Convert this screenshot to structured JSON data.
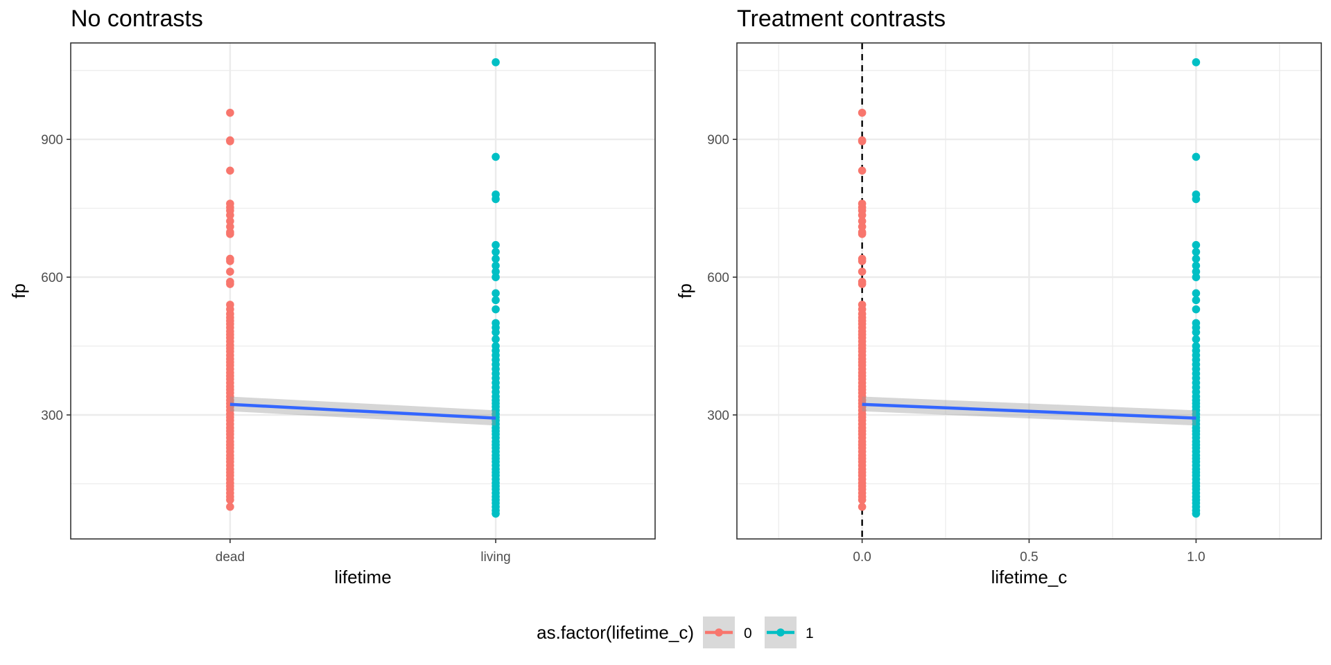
{
  "chart_data": [
    {
      "type": "scatter",
      "title": "No contrasts",
      "xlabel": "lifetime",
      "ylabel": "fp",
      "x_type": "categorical",
      "categories": [
        "dead",
        "living"
      ],
      "ylim": [
        30,
        1110
      ],
      "y_ticks": [
        300,
        600,
        900
      ],
      "grid": true,
      "series": [
        {
          "name": "0",
          "x": "dead",
          "color": "#F8766D",
          "values": [
            958,
            898,
            896,
            832,
            760,
            752,
            745,
            735,
            722,
            710,
            698,
            694,
            640,
            635,
            612,
            590,
            585,
            540,
            530,
            520,
            512,
            505,
            498,
            490,
            482,
            475,
            468,
            460,
            452,
            445,
            438,
            430,
            422,
            415,
            408,
            400,
            392,
            385,
            378,
            370,
            362,
            355,
            348,
            340,
            332,
            325,
            318,
            310,
            302,
            295,
            288,
            280,
            272,
            265,
            258,
            250,
            242,
            235,
            228,
            220,
            212,
            205,
            198,
            190,
            182,
            175,
            168,
            160,
            152,
            145,
            138,
            130,
            122,
            115,
            100
          ]
        },
        {
          "name": "1",
          "x": "living",
          "color": "#00BFC4",
          "values": [
            1068,
            862,
            780,
            770,
            670,
            655,
            640,
            625,
            612,
            600,
            565,
            550,
            530,
            500,
            490,
            480,
            465,
            450,
            440,
            430,
            420,
            410,
            400,
            390,
            380,
            370,
            360,
            350,
            340,
            332,
            325,
            318,
            310,
            302,
            295,
            288,
            280,
            272,
            265,
            258,
            250,
            242,
            235,
            228,
            220,
            212,
            205,
            198,
            190,
            182,
            175,
            168,
            160,
            152,
            145,
            138,
            130,
            122,
            115,
            108,
            100,
            92,
            85
          ]
        }
      ],
      "fit": {
        "color": "#3366FF",
        "x": [
          "dead",
          "living"
        ],
        "y": [
          323,
          293
        ],
        "ci_lower": [
          308,
          277
        ],
        "ci_upper": [
          340,
          310
        ],
        "ci_color": "#999999"
      }
    },
    {
      "type": "scatter",
      "title": "Treatment contrasts",
      "xlabel": "lifetime_c",
      "ylabel": "fp",
      "x_type": "numeric",
      "xlim": [
        -0.375,
        1.375
      ],
      "x_ticks": [
        0.0,
        0.5,
        1.0
      ],
      "x_tick_labels": [
        "0.0",
        "0.5",
        "1.0"
      ],
      "ylim": [
        30,
        1110
      ],
      "y_ticks": [
        300,
        600,
        900
      ],
      "grid": true,
      "vline": {
        "x": 0,
        "style": "dashed",
        "color": "#000000"
      },
      "series": [
        {
          "name": "0",
          "x": 0,
          "color": "#F8766D",
          "values": [
            958,
            898,
            896,
            832,
            760,
            752,
            745,
            735,
            722,
            710,
            698,
            694,
            640,
            635,
            612,
            590,
            585,
            540,
            530,
            520,
            512,
            505,
            498,
            490,
            482,
            475,
            468,
            460,
            452,
            445,
            438,
            430,
            422,
            415,
            408,
            400,
            392,
            385,
            378,
            370,
            362,
            355,
            348,
            340,
            332,
            325,
            318,
            310,
            302,
            295,
            288,
            280,
            272,
            265,
            258,
            250,
            242,
            235,
            228,
            220,
            212,
            205,
            198,
            190,
            182,
            175,
            168,
            160,
            152,
            145,
            138,
            130,
            122,
            115,
            100
          ]
        },
        {
          "name": "1",
          "x": 1,
          "color": "#00BFC4",
          "values": [
            1068,
            862,
            780,
            770,
            670,
            655,
            640,
            625,
            612,
            600,
            565,
            550,
            530,
            500,
            490,
            480,
            465,
            450,
            440,
            430,
            420,
            410,
            400,
            390,
            380,
            370,
            360,
            350,
            340,
            332,
            325,
            318,
            310,
            302,
            295,
            288,
            280,
            272,
            265,
            258,
            250,
            242,
            235,
            228,
            220,
            212,
            205,
            198,
            190,
            182,
            175,
            168,
            160,
            152,
            145,
            138,
            130,
            122,
            115,
            108,
            100,
            92,
            85
          ]
        }
      ],
      "fit": {
        "color": "#3366FF",
        "x": [
          0,
          1
        ],
        "y": [
          323,
          293
        ],
        "ci_lower": [
          308,
          277
        ],
        "ci_upper": [
          340,
          310
        ],
        "ci_color": "#999999"
      }
    }
  ],
  "legend": {
    "title": "as.factor(lifetime_c)",
    "placement": "bottom",
    "key_background": "#d9d9d9",
    "items": [
      {
        "label": "0",
        "color": "#F8766D",
        "line_color": "#F8766D"
      },
      {
        "label": "1",
        "color": "#00BFC4",
        "line_color": "#00BFC4"
      }
    ]
  }
}
